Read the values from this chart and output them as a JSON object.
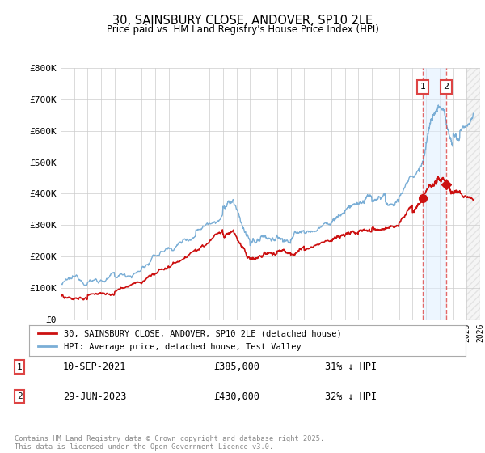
{
  "title": "30, SAINSBURY CLOSE, ANDOVER, SP10 2LE",
  "subtitle": "Price paid vs. HM Land Registry's House Price Index (HPI)",
  "background_color": "#ffffff",
  "grid_color": "#cccccc",
  "hpi_color": "#7aaed6",
  "price_color": "#cc1111",
  "dashed_line_color": "#dd4444",
  "ylim": [
    0,
    800000
  ],
  "yticks": [
    0,
    100000,
    200000,
    300000,
    400000,
    500000,
    600000,
    700000,
    800000
  ],
  "ytick_labels": [
    "£0",
    "£100K",
    "£200K",
    "£300K",
    "£400K",
    "£500K",
    "£600K",
    "£700K",
    "£800K"
  ],
  "x_start_year": 1995,
  "x_end_year": 2026,
  "legend_line1": "30, SAINSBURY CLOSE, ANDOVER, SP10 2LE (detached house)",
  "legend_line2": "HPI: Average price, detached house, Test Valley",
  "transaction1_label": "1",
  "transaction1_date": "10-SEP-2021",
  "transaction1_price": "£385,000",
  "transaction1_hpi": "31% ↓ HPI",
  "transaction1_year": 2021.75,
  "transaction1_value": 385000,
  "transaction2_label": "2",
  "transaction2_date": "29-JUN-2023",
  "transaction2_price": "£430,000",
  "transaction2_hpi": "32% ↓ HPI",
  "transaction2_year": 2023.5,
  "transaction2_value": 430000,
  "footnote": "Contains HM Land Registry data © Crown copyright and database right 2025.\nThis data is licensed under the Open Government Licence v3.0."
}
